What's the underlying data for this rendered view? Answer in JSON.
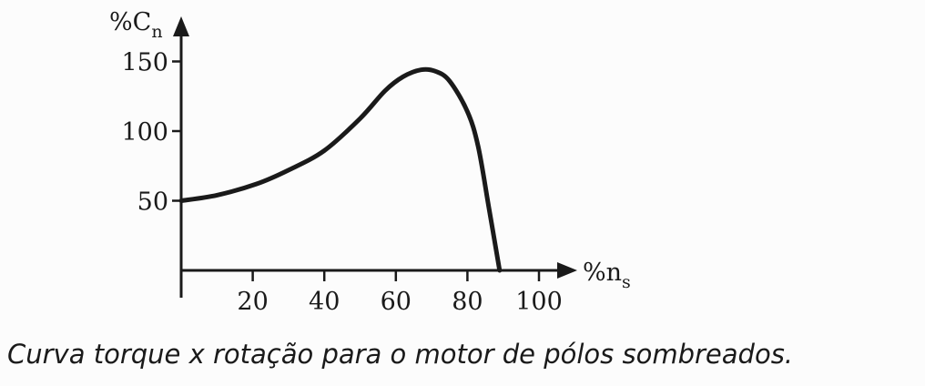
{
  "chart_data": {
    "type": "line",
    "title": "",
    "xlabel": {
      "main": "%n",
      "sub": "s"
    },
    "ylabel": {
      "main": "%C",
      "sub": "n"
    },
    "xlim": [
      0,
      100
    ],
    "ylim": [
      0,
      150
    ],
    "xticks": [
      20,
      40,
      60,
      80,
      100
    ],
    "yticks": [
      50,
      100,
      150
    ],
    "grid": false,
    "series": [
      {
        "x": [
          0,
          10,
          21,
          30,
          40,
          50,
          57,
          62,
          67,
          71,
          75,
          80,
          83,
          86,
          89
        ],
        "y": [
          50,
          54,
          62,
          72,
          86,
          109,
          129,
          139,
          144,
          143,
          136,
          114,
          89,
          45,
          0
        ],
        "color": "#1a1a1a"
      }
    ]
  },
  "caption": "Curva torque x rotação para o motor de pólos sombreados."
}
